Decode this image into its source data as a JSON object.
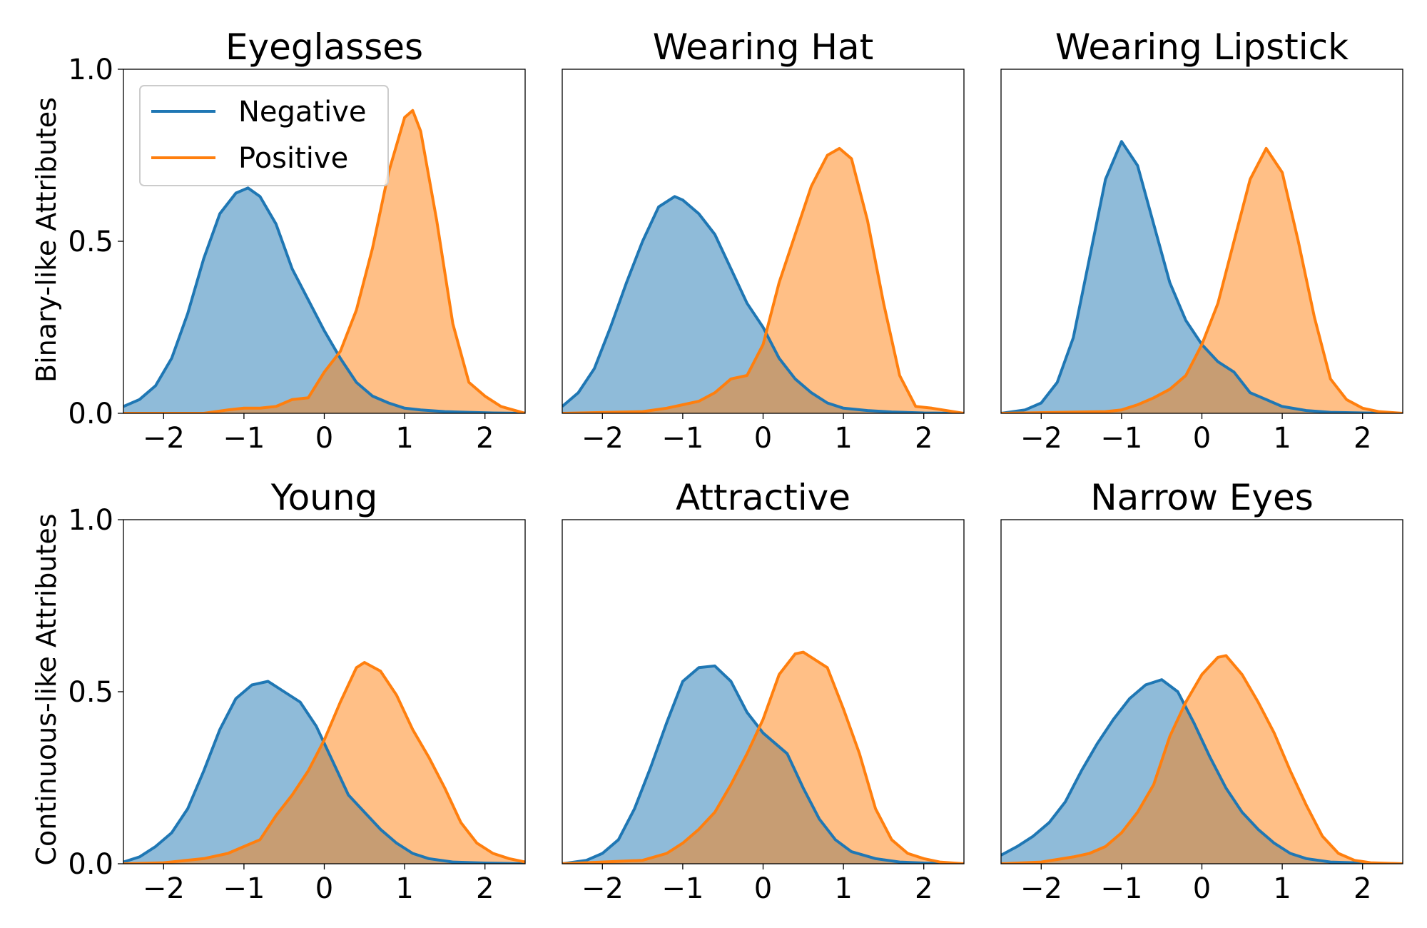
{
  "figure": {
    "row_labels": [
      "Binary-like Attributes",
      "Continuous-like Attributes"
    ]
  },
  "legend": {
    "location": "upper-left of first panel",
    "entries": [
      "Negative",
      "Positive"
    ]
  },
  "colors": {
    "negative": "#1f77b4",
    "positive": "#ff7f0e",
    "negative_fill": "#1f77b4",
    "positive_fill": "#ff7f0e",
    "fill_opacity": 0.5
  },
  "chart_data": [
    {
      "type": "area",
      "title": "Eyeglasses",
      "row": 0,
      "col": 0,
      "xlim": [
        -2.5,
        2.5
      ],
      "ylim": [
        0,
        1
      ],
      "xticks": [
        -2,
        -1,
        0,
        1,
        2
      ],
      "yticks": [
        0.0,
        0.5,
        1.0
      ],
      "ylabel": "Binary-like Attributes",
      "series": [
        {
          "name": "Negative",
          "x": [
            -2.5,
            -2.3,
            -2.1,
            -1.9,
            -1.7,
            -1.5,
            -1.3,
            -1.1,
            -0.95,
            -0.8,
            -0.6,
            -0.4,
            -0.2,
            0.0,
            0.2,
            0.4,
            0.6,
            0.8,
            1.0,
            1.2,
            1.5,
            1.8,
            2.1,
            2.5
          ],
          "y": [
            0.02,
            0.04,
            0.08,
            0.16,
            0.29,
            0.45,
            0.58,
            0.64,
            0.655,
            0.63,
            0.55,
            0.42,
            0.33,
            0.24,
            0.16,
            0.09,
            0.05,
            0.03,
            0.015,
            0.01,
            0.005,
            0.003,
            0.001,
            0.0
          ]
        },
        {
          "name": "Positive",
          "x": [
            -2.5,
            -1.5,
            -1.2,
            -1.0,
            -0.8,
            -0.6,
            -0.4,
            -0.2,
            0.0,
            0.2,
            0.4,
            0.6,
            0.8,
            1.0,
            1.1,
            1.2,
            1.4,
            1.6,
            1.8,
            2.0,
            2.2,
            2.5
          ],
          "y": [
            0.0,
            0.0,
            0.01,
            0.015,
            0.015,
            0.02,
            0.04,
            0.045,
            0.12,
            0.18,
            0.3,
            0.48,
            0.7,
            0.86,
            0.88,
            0.82,
            0.56,
            0.26,
            0.09,
            0.05,
            0.02,
            0.0
          ]
        }
      ]
    },
    {
      "type": "area",
      "title": "Wearing Hat",
      "row": 0,
      "col": 1,
      "xlim": [
        -2.5,
        2.5
      ],
      "ylim": [
        0,
        1
      ],
      "xticks": [
        -2,
        -1,
        0,
        1,
        2
      ],
      "yticks": [],
      "series": [
        {
          "name": "Negative",
          "x": [
            -2.5,
            -2.3,
            -2.1,
            -1.9,
            -1.7,
            -1.5,
            -1.3,
            -1.1,
            -1.0,
            -0.8,
            -0.6,
            -0.4,
            -0.2,
            0.0,
            0.2,
            0.4,
            0.6,
            0.8,
            1.0,
            1.3,
            1.6,
            2.0,
            2.5
          ],
          "y": [
            0.02,
            0.06,
            0.13,
            0.25,
            0.38,
            0.5,
            0.6,
            0.63,
            0.62,
            0.58,
            0.52,
            0.42,
            0.32,
            0.25,
            0.16,
            0.1,
            0.06,
            0.03,
            0.015,
            0.008,
            0.004,
            0.001,
            0.0
          ]
        },
        {
          "name": "Positive",
          "x": [
            -2.5,
            -1.5,
            -1.2,
            -1.0,
            -0.8,
            -0.6,
            -0.4,
            -0.2,
            0.0,
            0.2,
            0.4,
            0.6,
            0.8,
            0.95,
            1.1,
            1.3,
            1.5,
            1.7,
            1.9,
            2.1,
            2.5
          ],
          "y": [
            0.0,
            0.005,
            0.015,
            0.025,
            0.035,
            0.06,
            0.1,
            0.11,
            0.2,
            0.38,
            0.52,
            0.66,
            0.75,
            0.77,
            0.74,
            0.56,
            0.32,
            0.11,
            0.02,
            0.015,
            0.0
          ]
        }
      ]
    },
    {
      "type": "area",
      "title": "Wearing Lipstick",
      "row": 0,
      "col": 2,
      "xlim": [
        -2.5,
        2.5
      ],
      "ylim": [
        0,
        1
      ],
      "xticks": [
        -2,
        -1,
        0,
        1,
        2
      ],
      "yticks": [],
      "series": [
        {
          "name": "Negative",
          "x": [
            -2.5,
            -2.2,
            -2.0,
            -1.8,
            -1.6,
            -1.4,
            -1.2,
            -1.0,
            -0.8,
            -0.6,
            -0.4,
            -0.2,
            0.0,
            0.2,
            0.4,
            0.6,
            0.8,
            1.0,
            1.3,
            1.6,
            2.0,
            2.5
          ],
          "y": [
            0.0,
            0.01,
            0.03,
            0.09,
            0.22,
            0.45,
            0.68,
            0.79,
            0.72,
            0.55,
            0.38,
            0.27,
            0.2,
            0.15,
            0.12,
            0.06,
            0.04,
            0.02,
            0.008,
            0.003,
            0.001,
            0.0
          ]
        },
        {
          "name": "Positive",
          "x": [
            -2.5,
            -1.2,
            -1.0,
            -0.8,
            -0.6,
            -0.4,
            -0.2,
            0.0,
            0.2,
            0.4,
            0.6,
            0.8,
            1.0,
            1.2,
            1.4,
            1.6,
            1.8,
            2.0,
            2.2,
            2.5
          ],
          "y": [
            0.0,
            0.005,
            0.01,
            0.025,
            0.045,
            0.07,
            0.11,
            0.2,
            0.32,
            0.5,
            0.68,
            0.77,
            0.7,
            0.5,
            0.28,
            0.1,
            0.04,
            0.015,
            0.005,
            0.0
          ]
        }
      ]
    },
    {
      "type": "area",
      "title": "Young",
      "row": 1,
      "col": 0,
      "xlim": [
        -2.5,
        2.5
      ],
      "ylim": [
        0,
        1
      ],
      "xticks": [
        -2,
        -1,
        0,
        1,
        2
      ],
      "yticks": [
        0.0,
        0.5,
        1.0
      ],
      "ylabel": "Continuous-like Attributes",
      "series": [
        {
          "name": "Negative",
          "x": [
            -2.5,
            -2.3,
            -2.1,
            -1.9,
            -1.7,
            -1.5,
            -1.3,
            -1.1,
            -0.9,
            -0.7,
            -0.5,
            -0.3,
            -0.1,
            0.1,
            0.3,
            0.5,
            0.7,
            0.9,
            1.1,
            1.3,
            1.6,
            2.0,
            2.5
          ],
          "y": [
            0.005,
            0.02,
            0.05,
            0.09,
            0.16,
            0.27,
            0.39,
            0.48,
            0.52,
            0.53,
            0.5,
            0.47,
            0.4,
            0.3,
            0.2,
            0.15,
            0.1,
            0.06,
            0.03,
            0.015,
            0.005,
            0.002,
            0.0
          ]
        },
        {
          "name": "Positive",
          "x": [
            -2.5,
            -2.0,
            -1.5,
            -1.2,
            -1.0,
            -0.8,
            -0.6,
            -0.4,
            -0.2,
            0.0,
            0.2,
            0.4,
            0.5,
            0.7,
            0.9,
            1.1,
            1.3,
            1.5,
            1.7,
            1.9,
            2.1,
            2.3,
            2.5
          ],
          "y": [
            0.0,
            0.003,
            0.015,
            0.03,
            0.05,
            0.07,
            0.14,
            0.2,
            0.27,
            0.36,
            0.47,
            0.57,
            0.585,
            0.56,
            0.49,
            0.39,
            0.31,
            0.22,
            0.12,
            0.06,
            0.03,
            0.015,
            0.005
          ]
        }
      ]
    },
    {
      "type": "area",
      "title": "Attractive",
      "row": 1,
      "col": 1,
      "xlim": [
        -2.5,
        2.5
      ],
      "ylim": [
        0,
        1
      ],
      "xticks": [
        -2,
        -1,
        0,
        1,
        2
      ],
      "yticks": [],
      "series": [
        {
          "name": "Negative",
          "x": [
            -2.5,
            -2.2,
            -2.0,
            -1.8,
            -1.6,
            -1.4,
            -1.2,
            -1.0,
            -0.8,
            -0.6,
            -0.4,
            -0.2,
            0.0,
            0.15,
            0.3,
            0.5,
            0.7,
            0.9,
            1.1,
            1.4,
            1.7,
            2.0,
            2.5
          ],
          "y": [
            0.0,
            0.01,
            0.03,
            0.07,
            0.16,
            0.28,
            0.41,
            0.53,
            0.57,
            0.575,
            0.53,
            0.44,
            0.38,
            0.35,
            0.32,
            0.22,
            0.13,
            0.07,
            0.035,
            0.015,
            0.005,
            0.002,
            0.0
          ]
        },
        {
          "name": "Positive",
          "x": [
            -2.5,
            -1.5,
            -1.2,
            -1.0,
            -0.8,
            -0.6,
            -0.4,
            -0.2,
            0.0,
            0.2,
            0.4,
            0.5,
            0.6,
            0.8,
            1.0,
            1.2,
            1.4,
            1.6,
            1.8,
            2.0,
            2.2,
            2.5
          ],
          "y": [
            0.0,
            0.01,
            0.03,
            0.06,
            0.1,
            0.15,
            0.23,
            0.32,
            0.42,
            0.55,
            0.61,
            0.615,
            0.6,
            0.57,
            0.45,
            0.32,
            0.16,
            0.07,
            0.03,
            0.015,
            0.005,
            0.0
          ]
        }
      ]
    },
    {
      "type": "area",
      "title": "Narrow Eyes",
      "row": 1,
      "col": 2,
      "xlim": [
        -2.5,
        2.5
      ],
      "ylim": [
        0,
        1
      ],
      "xticks": [
        -2,
        -1,
        0,
        1,
        2
      ],
      "yticks": [],
      "series": [
        {
          "name": "Negative",
          "x": [
            -2.5,
            -2.3,
            -2.1,
            -1.9,
            -1.7,
            -1.5,
            -1.3,
            -1.1,
            -0.9,
            -0.7,
            -0.5,
            -0.3,
            -0.1,
            0.1,
            0.3,
            0.5,
            0.7,
            0.9,
            1.1,
            1.3,
            1.6,
            2.0,
            2.5
          ],
          "y": [
            0.025,
            0.05,
            0.08,
            0.12,
            0.18,
            0.27,
            0.35,
            0.42,
            0.48,
            0.52,
            0.535,
            0.5,
            0.41,
            0.31,
            0.22,
            0.15,
            0.1,
            0.06,
            0.03,
            0.015,
            0.005,
            0.002,
            0.0
          ]
        },
        {
          "name": "Positive",
          "x": [
            -2.5,
            -2.0,
            -1.6,
            -1.4,
            -1.2,
            -1.0,
            -0.8,
            -0.6,
            -0.4,
            -0.2,
            0.0,
            0.2,
            0.3,
            0.5,
            0.7,
            0.9,
            1.1,
            1.3,
            1.5,
            1.7,
            1.9,
            2.1,
            2.5
          ],
          "y": [
            0.0,
            0.005,
            0.02,
            0.03,
            0.05,
            0.09,
            0.15,
            0.23,
            0.37,
            0.47,
            0.55,
            0.6,
            0.605,
            0.55,
            0.47,
            0.38,
            0.27,
            0.17,
            0.08,
            0.03,
            0.01,
            0.003,
            0.0
          ]
        }
      ]
    }
  ]
}
